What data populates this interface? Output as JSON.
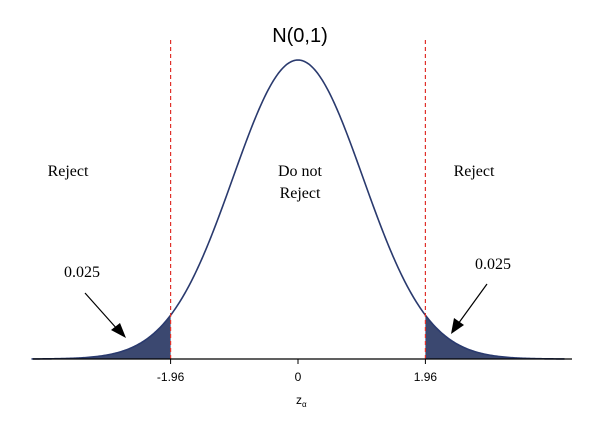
{
  "chart_data": {
    "type": "area",
    "title": "N(0,1)",
    "distribution": {
      "mean": 0,
      "sd": 1
    },
    "xlim": [
      -4.1,
      4.1
    ],
    "critical_values": [
      -1.96,
      1.96
    ],
    "x_ticks": [
      {
        "value": -1.96,
        "label": "-1.96"
      },
      {
        "value": 0,
        "label": "0"
      },
      {
        "value": 1.96,
        "label": "1.96"
      }
    ],
    "xlabel_main": "z",
    "xlabel_sub": "α",
    "regions": {
      "left": {
        "label": "Reject",
        "tail_probability": "0.025"
      },
      "center": {
        "label_line1": "Do not",
        "label_line2": "Reject"
      },
      "right": {
        "label": "Reject",
        "tail_probability": "0.025"
      }
    },
    "colors": {
      "curve": "#2a3a6e",
      "tail_fill": "#3b4870",
      "critical_line": "#e0312b",
      "axis": "#000000"
    }
  }
}
